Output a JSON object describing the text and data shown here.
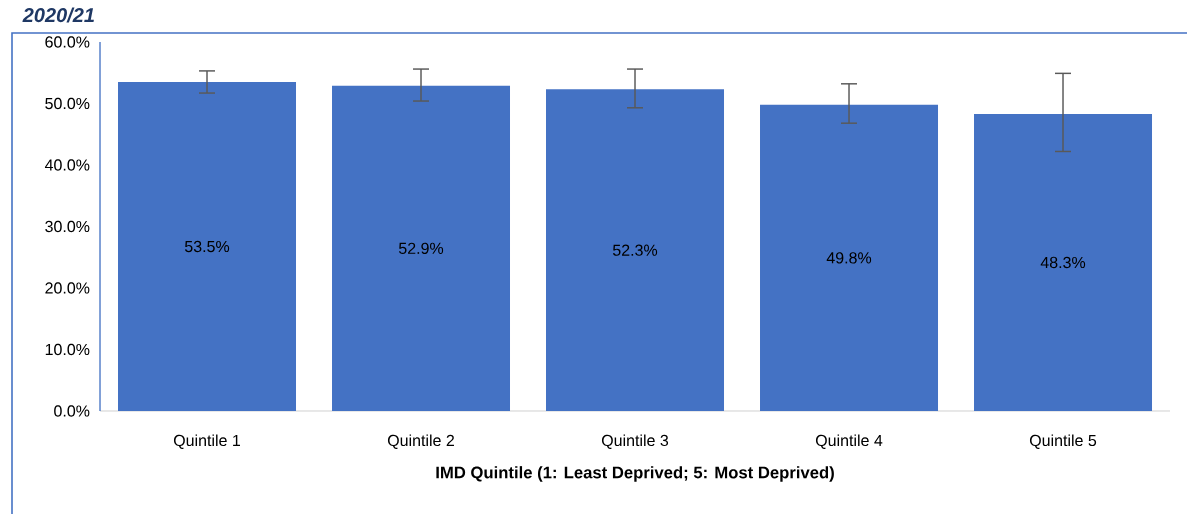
{
  "chart_data": {
    "type": "bar",
    "title": "2020/21",
    "categories": [
      "Quintile 1",
      "Quintile 2",
      "Quintile 3",
      "Quintile 4",
      "Quintile 5"
    ],
    "values": [
      53.5,
      52.9,
      52.3,
      49.8,
      48.3
    ],
    "value_labels": [
      "53.5%",
      "52.9%",
      "52.3%",
      "49.8%",
      "48.3%"
    ],
    "errors": [
      [
        51.7,
        55.3
      ],
      [
        50.4,
        55.6
      ],
      [
        49.3,
        55.6
      ],
      [
        46.8,
        53.2
      ],
      [
        42.2,
        54.9
      ]
    ],
    "color": "#4472c4",
    "xlabel": "IMD Quintile (1: Least Deprived; 5: Most Deprived)",
    "ylim": [
      0,
      60
    ],
    "yticks": [
      {
        "value": 0,
        "label": "0.0%"
      },
      {
        "value": 10,
        "label": "10.0%"
      },
      {
        "value": 20,
        "label": "20.0%"
      },
      {
        "value": 30,
        "label": "30.0%"
      },
      {
        "value": 40,
        "label": "40.0%"
      },
      {
        "value": 50,
        "label": "50.0%"
      },
      {
        "value": 60,
        "label": "60.0%"
      }
    ],
    "grid": false
  }
}
